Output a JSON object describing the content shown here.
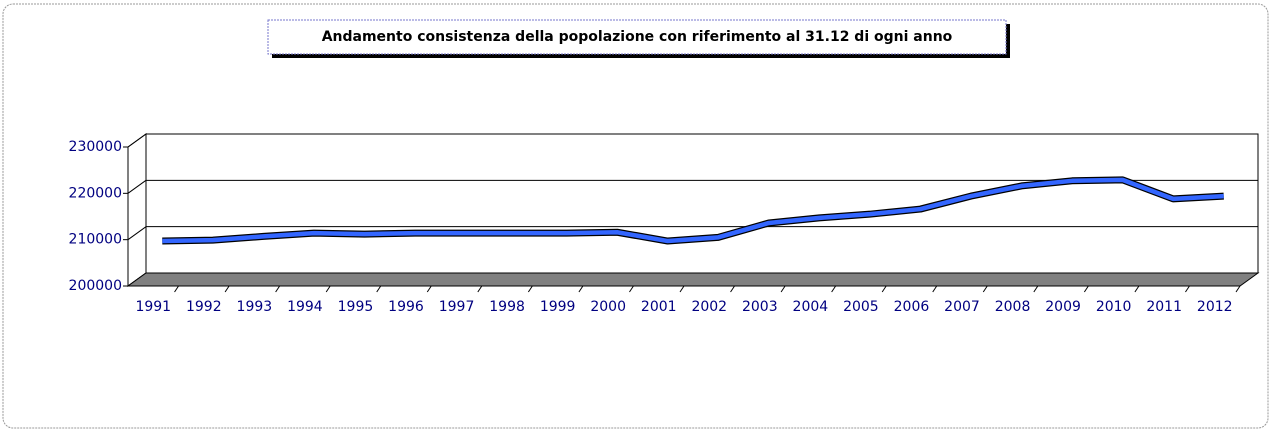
{
  "chart_data": {
    "type": "line",
    "title": "Andamento consistenza della popolazione con riferimento al 31.12 di ogni anno",
    "categories": [
      "1991",
      "1992",
      "1993",
      "1994",
      "1995",
      "1996",
      "1997",
      "1998",
      "1999",
      "2000",
      "2001",
      "2002",
      "2003",
      "2004",
      "2005",
      "2006",
      "2007",
      "2008",
      "2009",
      "2010",
      "2011",
      "2012"
    ],
    "series": [
      {
        "name": null,
        "color": "#3366ff",
        "values": [
          208300,
          208500,
          209300,
          210000,
          209800,
          210000,
          210000,
          210000,
          210000,
          210200,
          208300,
          209100,
          212200,
          213300,
          214100,
          215200,
          218000,
          220200,
          221300,
          221500,
          217400,
          218000
        ]
      }
    ],
    "ylim": [
      200000,
      230000
    ],
    "yticks": [
      200000,
      210000,
      220000,
      230000
    ],
    "grid": true
  }
}
